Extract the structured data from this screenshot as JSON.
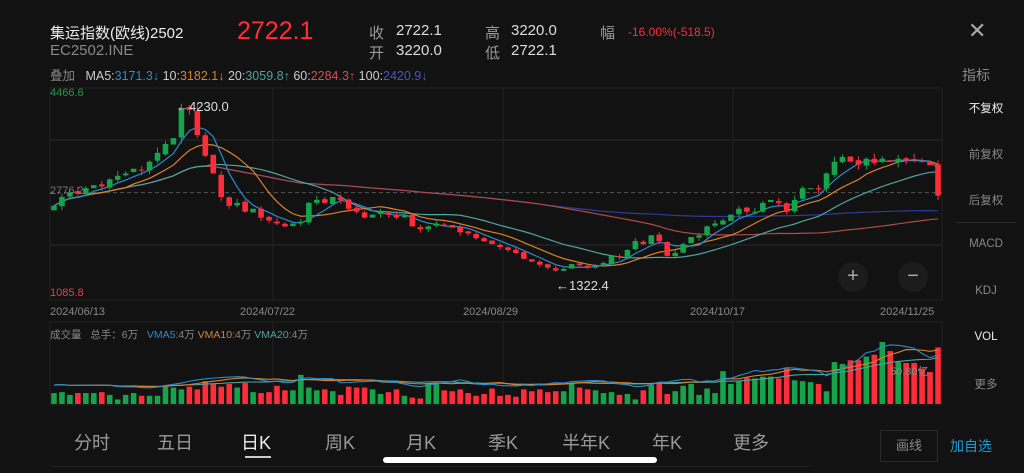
{
  "header": {
    "title": "集运指数(欧线)2502",
    "code": "EC2502.INE",
    "last_price": "2722.1",
    "close_label": "收",
    "close_value": "2722.1",
    "high_label": "高",
    "high_value": "3220.0",
    "range_label": "幅",
    "change": "-16.00%(-518.5)",
    "open_label": "开",
    "open_value": "3220.0",
    "low_label": "低",
    "low_value": "2722.1",
    "close_icon": "close-icon"
  },
  "ma_row": {
    "overlay": "叠加",
    "ma5_label": "MA5:",
    "ma5": "3171.3↓",
    "ma10_label": "10:",
    "ma10": "3182.1↓",
    "ma20_label": "20:",
    "ma20": "3059.8↑",
    "ma60_label": "60:",
    "ma60": "2284.3↑",
    "ma100_label": "100:",
    "ma100": "2420.9↓",
    "indicator": "指标"
  },
  "colors": {
    "up": "#16a34a",
    "down": "#ff2d3a",
    "ma5": "#2a8bd0",
    "ma10": "#d9822b",
    "ma20": "#4fa3a0",
    "ma60": "#b04848",
    "ma100": "#2f3a9a",
    "accent": "#1a9bd6"
  },
  "side_menu": [
    "不复权",
    "前复权",
    "后复权",
    "MACD",
    "KDJ",
    "VOL",
    "更多"
  ],
  "volume_header": {
    "label": "成交量",
    "total": "总手：6万",
    "vma5_label": "VMA5",
    "vma5": ":4万",
    "vma10_label": "VMA10",
    "vma10": ":4万",
    "vma20_label": "VMA20",
    "vma20": ":4万",
    "value_label": "50.80亿"
  },
  "tabs": [
    "分时",
    "五日",
    "日K",
    "周K",
    "月K",
    "季K",
    "半年K",
    "年K",
    "更多"
  ],
  "selected_tab": "日K",
  "buttons": {
    "draw": "画线",
    "add_watch": "加自选",
    "zoom_in": "+",
    "zoom_out": "−"
  },
  "chart_data": {
    "type": "candlestick",
    "y_max_label": "4466.6",
    "y_min_label": "1085.8",
    "ylim": [
      1085.8,
      4466.6
    ],
    "current_line_label": "2776.2",
    "high_annotation": "←4230.0",
    "low_annotation": "←1322.4",
    "x_ticks": [
      "2024/06/13",
      "2024/07/22",
      "2024/08/29",
      "2024/10/17",
      "2024/11/25"
    ],
    "closes": [
      2550,
      2700,
      2780,
      2760,
      2850,
      2900,
      2880,
      3000,
      3060,
      3100,
      3180,
      3150,
      3300,
      3450,
      3600,
      3700,
      4200,
      4180,
      3750,
      3400,
      3100,
      2700,
      2550,
      2600,
      2450,
      2500,
      2350,
      2300,
      2250,
      2200,
      2250,
      2280,
      2600,
      2650,
      2600,
      2700,
      2650,
      2500,
      2450,
      2350,
      2400,
      2450,
      2400,
      2350,
      2380,
      2200,
      2150,
      2200,
      2250,
      2230,
      2180,
      2100,
      2080,
      2000,
      1950,
      1900,
      1850,
      1800,
      1750,
      1650,
      1600,
      1550,
      1500,
      1450,
      1480,
      1560,
      1540,
      1500,
      1520,
      1580,
      1700,
      1680,
      1800,
      1950,
      1900,
      2050,
      1950,
      1700,
      1750,
      1900,
      2020,
      2050,
      2200,
      2250,
      2300,
      2400,
      2500,
      2450,
      2450,
      2600,
      2650,
      2600,
      2450,
      2650,
      2850,
      2850,
      2830,
      3100,
      3300,
      3380,
      3300,
      3250,
      3350,
      3280,
      3350,
      3300,
      3350,
      3320,
      3330,
      3300,
      3240,
      2722.1
    ],
    "volumes_wan": [
      1.2,
      1.3,
      1.0,
      1.2,
      1.2,
      1.2,
      1.3,
      1.0,
      0.5,
      1.0,
      1.2,
      0.9,
      0.9,
      0.9,
      1.9,
      1.8,
      1.6,
      1.9,
      1.6,
      2.5,
      2.2,
      1.9,
      2.2,
      1.8,
      2.3,
      1.3,
      1.2,
      1.3,
      2.0,
      1.5,
      1.5,
      3.2,
      1.8,
      1.5,
      1.6,
      1.4,
      1.0,
      1.9,
      1.8,
      1.8,
      1.6,
      1.1,
      1.3,
      1.6,
      0.9,
      0.7,
      0.6,
      2.2,
      2.2,
      1.5,
      1.4,
      1.6,
      1.2,
      0.9,
      1.1,
      1.7,
      0.9,
      1.0,
      0.8,
      1.6,
      1.4,
      1.6,
      1.3,
      1.4,
      1.4,
      2.2,
      1.8,
      1.6,
      1.5,
      1.2,
      1.3,
      1.0,
      1.1,
      0.5,
      1.5,
      2.1,
      2.4,
      1.1,
      1.4,
      2.0,
      2.2,
      1.0,
      1.7,
      1.2,
      3.6,
      2.2,
      2.5,
      2.9,
      2.8,
      3.0,
      3.0,
      2.8,
      3.9,
      2.6,
      2.5,
      2.4,
      2.2,
      1.4,
      4.6,
      4.4,
      4.8,
      4.8,
      5.2,
      5.4,
      6.8,
      5.8,
      4.6,
      4.5,
      4.5,
      3.9,
      3.5,
      6.2
    ]
  }
}
